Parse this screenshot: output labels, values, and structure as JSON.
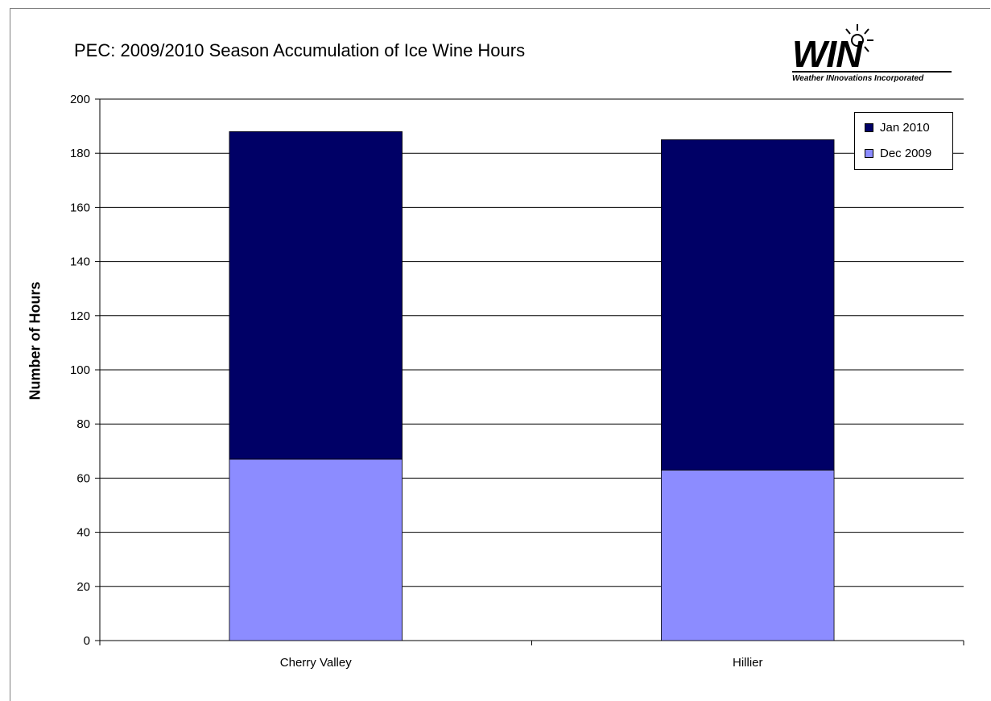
{
  "chart_data": {
    "type": "bar",
    "stacked": true,
    "title": "PEC: 2009/2010 Season Accumulation of Ice Wine Hours",
    "xlabel": "",
    "ylabel": "Number of Hours",
    "ylim": [
      0,
      200
    ],
    "yticks": [
      0,
      20,
      40,
      60,
      80,
      100,
      120,
      140,
      160,
      180,
      200
    ],
    "categories": [
      "Cherry Valley",
      "Hillier"
    ],
    "series": [
      {
        "name": "Dec 2009",
        "values": [
          67,
          63
        ],
        "color": "#8c8cff"
      },
      {
        "name": "Jan 2010",
        "values": [
          121,
          122
        ],
        "color": "#000066"
      }
    ],
    "legend": {
      "placement": "top-right",
      "order": [
        "Jan 2010",
        "Dec 2009"
      ]
    },
    "grid": true
  },
  "logo": {
    "word": "WIN",
    "tagline": "Weather INnovations Incorporated",
    "icon": "sun-icon"
  }
}
